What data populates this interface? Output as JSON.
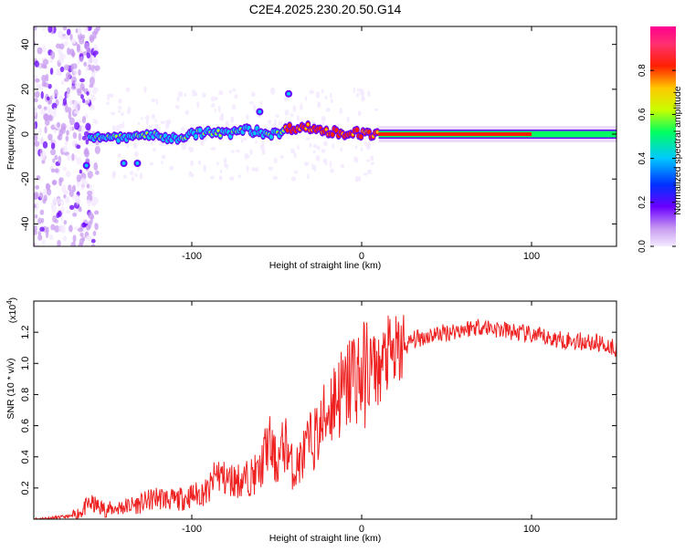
{
  "title": "C2E4.2025.230.20.50.G14",
  "chart_data": [
    {
      "type": "heatmap",
      "xlabel": "Height of straight line (km)",
      "ylabel": "Frequency (Hz)",
      "xlim": [
        -193,
        150
      ],
      "ylim": [
        -50,
        48
      ],
      "xticks": [
        -100,
        0,
        100
      ],
      "xtick_labels": [
        "-100",
        "0",
        "100"
      ],
      "yticks": [
        -40,
        -20,
        0,
        20,
        40
      ],
      "ytick_labels": [
        "-40",
        "-20",
        "0",
        "20",
        "40"
      ],
      "colorbar": {
        "label": "Normalized spectral amplitude",
        "range": [
          0,
          1
        ],
        "ticks": [
          0.0,
          0.2,
          0.4,
          0.6,
          0.8
        ],
        "tick_labels": [
          "0.0",
          "0.2",
          "0.4",
          "0.6",
          "0.8"
        ],
        "colormap": [
          "#f4eaff",
          "#c89cf0",
          "#6a00ff",
          "#0030ff",
          "#00c8ff",
          "#00ff60",
          "#c8ff00",
          "#ffc800",
          "#ff2000",
          "#ff3070",
          "#ff0090"
        ]
      },
      "ridge": {
        "x": [
          -160,
          -150,
          -140,
          -130,
          -120,
          -110,
          -100,
          -90,
          -80,
          -70,
          -60,
          -50,
          -45,
          -40,
          -35,
          -30,
          -25,
          -20,
          -15,
          -10,
          -5,
          0,
          5,
          10,
          20,
          40,
          60,
          80,
          100,
          120,
          150
        ],
        "y": [
          -2,
          -1,
          -2,
          0,
          -1,
          -2,
          0,
          1,
          0,
          2,
          1,
          0,
          2,
          3,
          3,
          3,
          2,
          1,
          1,
          0,
          1,
          0,
          0,
          0,
          0,
          0,
          0,
          0,
          0,
          0,
          0
        ]
      }
    },
    {
      "type": "line",
      "xlabel": "Height of straight line (km)",
      "ylabel": "SNR (10 * v/v)",
      "scale_label": "(x10",
      "scale_exp": "4",
      "xlim": [
        -193,
        150
      ],
      "ylim": [
        0,
        1.4
      ],
      "xticks": [
        -100,
        0,
        100
      ],
      "xtick_labels": [
        "-100",
        "0",
        "100"
      ],
      "yticks": [
        0.2,
        0.4,
        0.6,
        0.8,
        1.0,
        1.2
      ],
      "ytick_labels": [
        "0.2",
        "0.4",
        "0.6",
        "0.8",
        "1.0",
        "1.2"
      ],
      "color": "#ee2020",
      "x": [
        -193,
        -180,
        -170,
        -165,
        -160,
        -150,
        -140,
        -130,
        -120,
        -110,
        -100,
        -90,
        -85,
        -80,
        -70,
        -60,
        -55,
        -50,
        -45,
        -40,
        -35,
        -30,
        -25,
        -20,
        -15,
        -10,
        -5,
        0,
        5,
        10,
        15,
        20,
        25,
        30,
        40,
        50,
        60,
        70,
        80,
        90,
        100,
        110,
        120,
        130,
        140,
        150
      ],
      "y": [
        0.0,
        0.01,
        0.02,
        0.05,
        0.1,
        0.06,
        0.08,
        0.1,
        0.14,
        0.12,
        0.15,
        0.18,
        0.3,
        0.25,
        0.25,
        0.3,
        0.5,
        0.35,
        0.5,
        0.3,
        0.4,
        0.5,
        0.55,
        0.7,
        0.8,
        0.8,
        0.95,
        0.9,
        1.0,
        0.95,
        1.05,
        1.05,
        1.1,
        1.15,
        1.18,
        1.2,
        1.22,
        1.24,
        1.22,
        1.2,
        1.18,
        1.16,
        1.15,
        1.14,
        1.13,
        1.1
      ]
    }
  ]
}
